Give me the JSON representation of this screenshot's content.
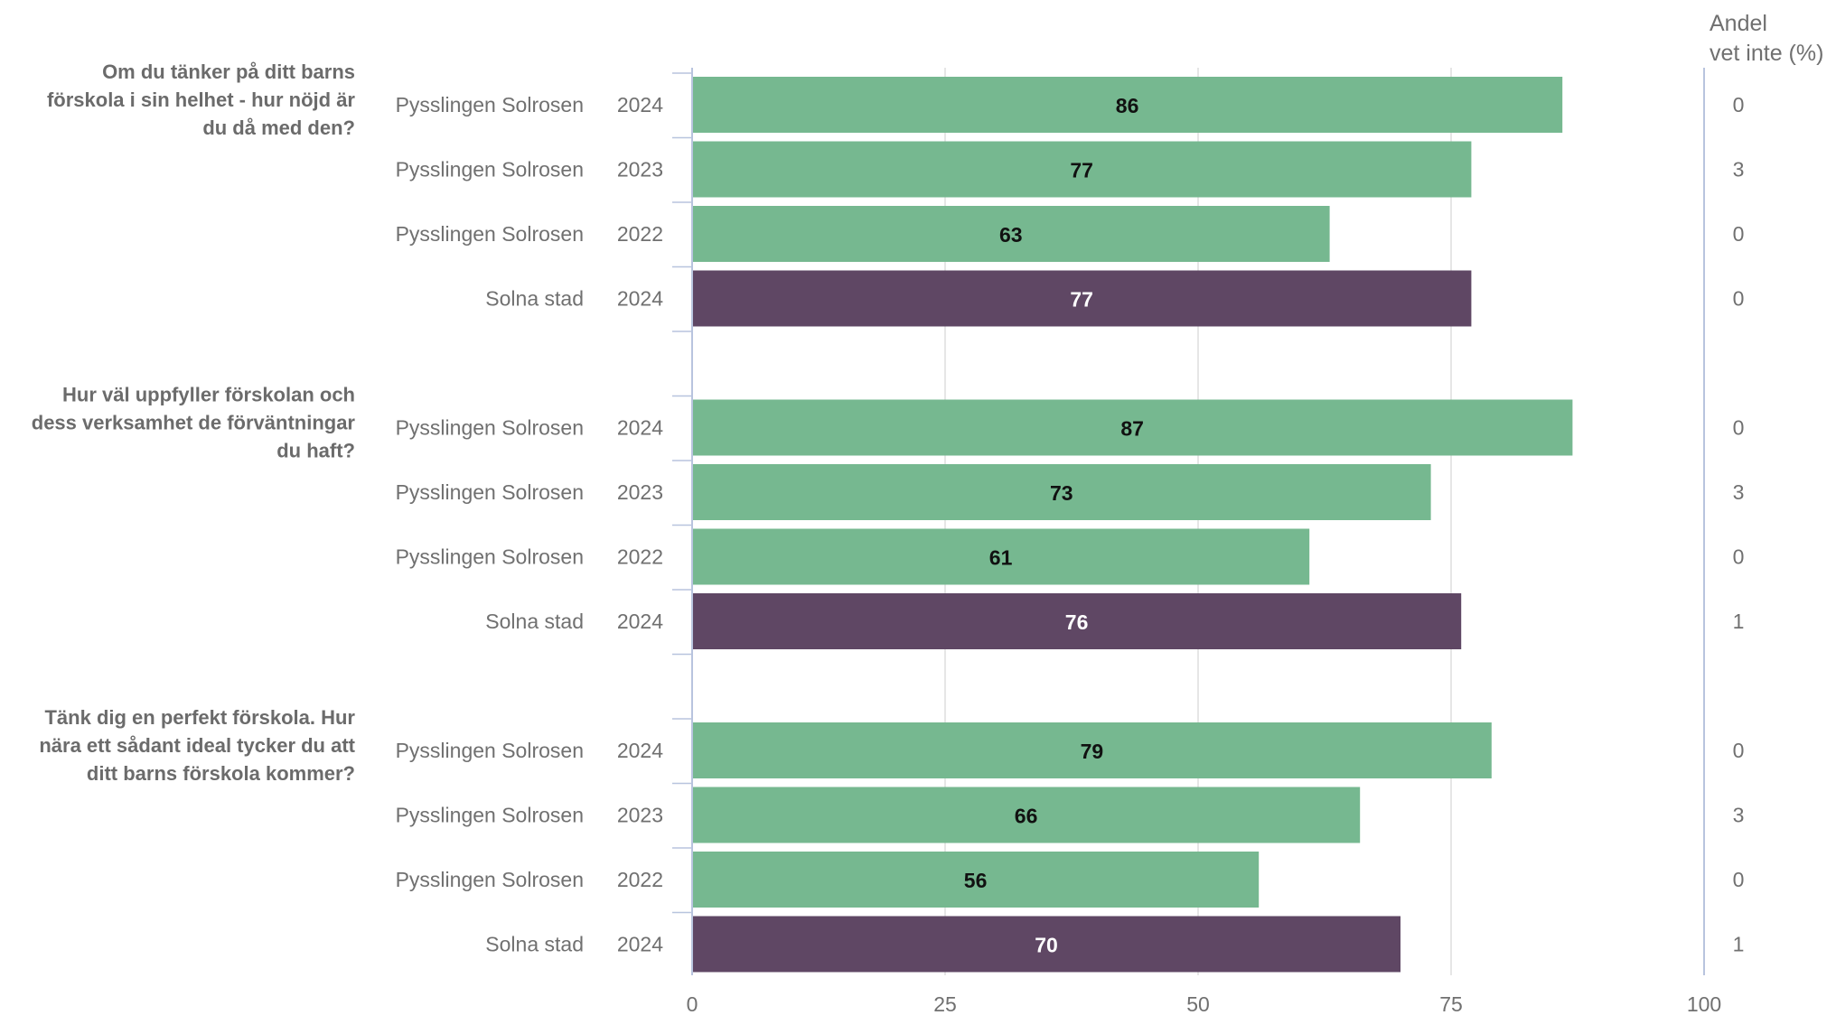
{
  "chart_data": {
    "type": "bar",
    "orientation": "horizontal",
    "xlim": [
      0,
      100
    ],
    "xticks": [
      "0",
      "25",
      "50",
      "75",
      "100"
    ],
    "dont_know_header": [
      "Andel",
      "vet inte (%)"
    ],
    "colors": {
      "school": "#76b890",
      "municipality": "#5f4764",
      "grid": "#dddddd",
      "axis": "#b8c4de",
      "label_dark": "#111111",
      "label_light": "#ffffff"
    },
    "groups": [
      {
        "question": [
          "Om du tänker på ditt barns",
          "förskola i sin helhet - hur nöjd är",
          "du då med den?"
        ],
        "rows": [
          {
            "name": "Pysslingen Solrosen",
            "year": "2024",
            "value": 86,
            "dont_know": "0",
            "kind": "school"
          },
          {
            "name": "Pysslingen Solrosen",
            "year": "2023",
            "value": 77,
            "dont_know": "3",
            "kind": "school"
          },
          {
            "name": "Pysslingen Solrosen",
            "year": "2022",
            "value": 63,
            "dont_know": "0",
            "kind": "school"
          },
          {
            "name": "Solna stad",
            "year": "2024",
            "value": 77,
            "dont_know": "0",
            "kind": "municipality"
          }
        ]
      },
      {
        "question": [
          "Hur väl uppfyller förskolan och",
          "dess verksamhet de förväntningar",
          "du haft?"
        ],
        "rows": [
          {
            "name": "Pysslingen Solrosen",
            "year": "2024",
            "value": 87,
            "dont_know": "0",
            "kind": "school"
          },
          {
            "name": "Pysslingen Solrosen",
            "year": "2023",
            "value": 73,
            "dont_know": "3",
            "kind": "school"
          },
          {
            "name": "Pysslingen Solrosen",
            "year": "2022",
            "value": 61,
            "dont_know": "0",
            "kind": "school"
          },
          {
            "name": "Solna stad",
            "year": "2024",
            "value": 76,
            "dont_know": "1",
            "kind": "municipality"
          }
        ]
      },
      {
        "question": [
          "Tänk dig en perfekt förskola. Hur",
          "nära ett sådant ideal tycker du att",
          "ditt barns förskola kommer?"
        ],
        "rows": [
          {
            "name": "Pysslingen Solrosen",
            "year": "2024",
            "value": 79,
            "dont_know": "0",
            "kind": "school"
          },
          {
            "name": "Pysslingen Solrosen",
            "year": "2023",
            "value": 66,
            "dont_know": "3",
            "kind": "school"
          },
          {
            "name": "Pysslingen Solrosen",
            "year": "2022",
            "value": 56,
            "dont_know": "0",
            "kind": "school"
          },
          {
            "name": "Solna stad",
            "year": "2024",
            "value": 70,
            "dont_know": "1",
            "kind": "municipality"
          }
        ]
      }
    ]
  }
}
